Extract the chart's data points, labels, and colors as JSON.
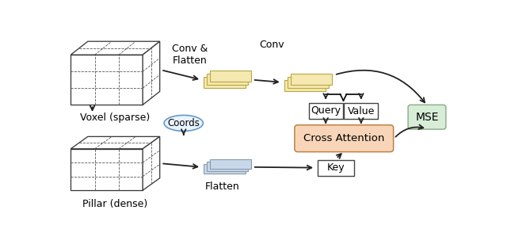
{
  "fig_width": 6.4,
  "fig_height": 2.94,
  "dpi": 100,
  "bg_color": "#ffffff",
  "voxel_label": "Voxel (sparse)",
  "pillar_label": "Pillar (dense)",
  "text_conv_flatten": "Conv &\nFlatten",
  "text_conv": "Conv",
  "text_flatten": "Flatten",
  "coords_label": "Coords",
  "query_label": "Query",
  "value_label": "Value",
  "key_label": "Key",
  "cross_attn_label": "Cross Attention",
  "mse_label": "MSE",
  "yellow_color": "#F5E8B0",
  "yellow_edge": "#B8A840",
  "blue_color": "#C8D8EA",
  "blue_edge": "#8899AA",
  "cross_attn_color": "#F8D5B8",
  "cross_attn_edge": "#C08040",
  "mse_color": "#D8EDD8",
  "mse_edge": "#90B090",
  "coords_color": "#E8F4FF",
  "coords_edge": "#6699CC",
  "box_edge": "#444444",
  "arrow_color": "#222222"
}
